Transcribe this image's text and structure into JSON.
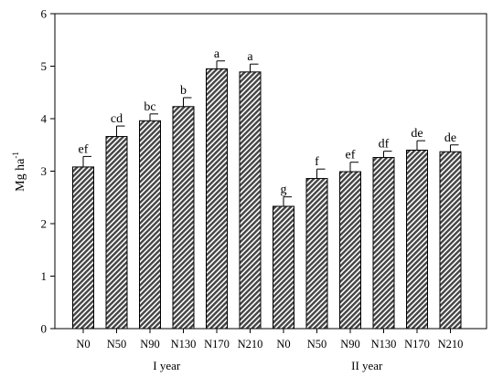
{
  "chart_data": {
    "type": "bar",
    "ylabel": "Mg ha",
    "ylabel_sup": "-1",
    "ylim": [
      0,
      6
    ],
    "yticks": [
      "0",
      "1",
      "2",
      "3",
      "4",
      "5",
      "6"
    ],
    "grid": false,
    "categories": [
      "N0",
      "N50",
      "N90",
      "N130",
      "N170",
      "N210",
      "N0",
      "N50",
      "N90",
      "N130",
      "N170",
      "N210"
    ],
    "values": [
      3.08,
      3.66,
      3.96,
      4.23,
      4.95,
      4.89,
      2.33,
      2.86,
      2.99,
      3.26,
      3.4,
      3.37
    ],
    "errors": [
      0.2,
      0.2,
      0.13,
      0.17,
      0.15,
      0.15,
      0.18,
      0.18,
      0.18,
      0.12,
      0.18,
      0.13
    ],
    "significance": [
      "ef",
      "cd",
      "bc",
      "b",
      "a",
      "a",
      "g",
      "f",
      "ef",
      "df",
      "de",
      "de"
    ],
    "groups": [
      {
        "label": "I year",
        "start": 0,
        "end": 5
      },
      {
        "label": "II year",
        "start": 6,
        "end": 11
      }
    ],
    "bar_fill": "#444444",
    "bar_pattern": "diagonal-hatch"
  }
}
